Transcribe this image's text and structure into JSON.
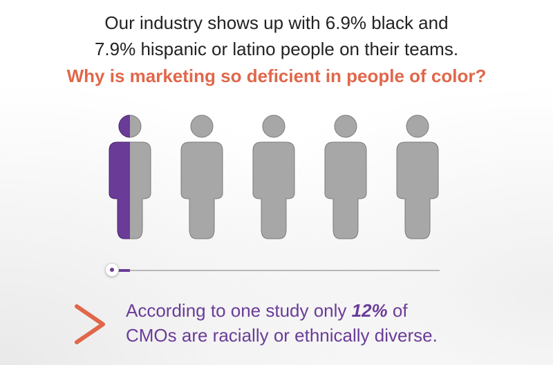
{
  "headline": {
    "line1": "Our industry shows up with 6.9% black and",
    "line2": "7.9% hispanic or latino people on their teams."
  },
  "question": "Why is marketing so deficient in people of color?",
  "figures": {
    "count": 5,
    "highlighted_index": 0,
    "highlight_fraction": 0.5,
    "colors": {
      "highlight": "#6a3c97",
      "base": "#a7a7a7"
    }
  },
  "slider": {
    "value_fraction": 0.05
  },
  "footer": {
    "line1_before": "According to one study only ",
    "line1_pct": "12%",
    "line1_after": " of",
    "line2": "CMOs are racially or ethnically diverse."
  },
  "colors": {
    "headline": "#222222",
    "question": "#e0674a",
    "accent": "#6a3c97",
    "chevron": "#e0674a"
  },
  "icons": {
    "chevron": "chevron-right-icon",
    "person": "person-icon"
  }
}
